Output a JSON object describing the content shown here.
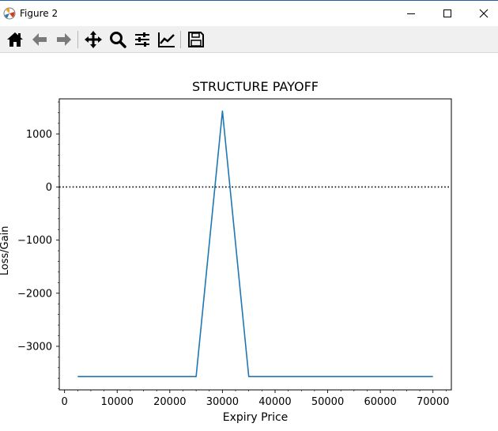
{
  "window": {
    "title": "Figure 2",
    "controls": {
      "minimize": "minimize",
      "maximize": "maximize",
      "close": "close"
    }
  },
  "toolbar": {
    "buttons": [
      {
        "name": "home",
        "icon": "home-icon"
      },
      {
        "name": "back",
        "icon": "arrow-left-icon"
      },
      {
        "name": "forward",
        "icon": "arrow-right-icon"
      },
      {
        "name": "pan",
        "icon": "move-icon"
      },
      {
        "name": "zoom",
        "icon": "magnifier-icon"
      },
      {
        "name": "configure-subplots",
        "icon": "sliders-icon"
      },
      {
        "name": "edit-axis",
        "icon": "line-chart-icon"
      },
      {
        "name": "save",
        "icon": "floppy-disk-icon"
      }
    ]
  },
  "chart_data": {
    "type": "line",
    "title": "STRUCTURE PAYOFF",
    "xlabel": "Expiry Price",
    "ylabel": "Loss/Gain",
    "xlim": [
      -1000,
      73500
    ],
    "ylim": [
      -3820,
      1660
    ],
    "xticks": [
      0,
      10000,
      20000,
      30000,
      40000,
      50000,
      60000,
      70000
    ],
    "yticks": [
      1000,
      0,
      -1000,
      -2000,
      -3000
    ],
    "yticklabels": [
      "1000",
      "0",
      "−1000",
      "−2000",
      "−3000"
    ],
    "series": [
      {
        "x": [
          2500,
          25000,
          30000,
          35000,
          70000
        ],
        "y": [
          -3570,
          -3570,
          1430,
          -3570,
          -3570
        ],
        "color": "#1f77b4"
      }
    ],
    "reference_lines": [
      {
        "y": 0,
        "style": "dotted",
        "color": "#000000"
      }
    ],
    "grid": false
  }
}
